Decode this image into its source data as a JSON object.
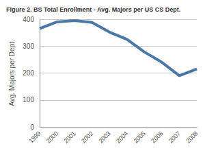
{
  "chart_data": {
    "type": "line",
    "title": "Figure 2. BS Total Enrollment - Avg. Majors per US CS Dept.",
    "y_label": "Avg. Majors per Dept.",
    "categories": [
      "1999",
      "2000",
      "2001",
      "2002",
      "2003",
      "2004",
      "2005",
      "2006",
      "2007",
      "2008"
    ],
    "values": [
      365,
      390,
      395,
      388,
      352,
      325,
      278,
      240,
      190,
      215
    ],
    "color": "#4a78a6",
    "ylim": [
      0,
      400
    ],
    "yticks": [
      0,
      100,
      200,
      300,
      400
    ],
    "grid": true
  }
}
